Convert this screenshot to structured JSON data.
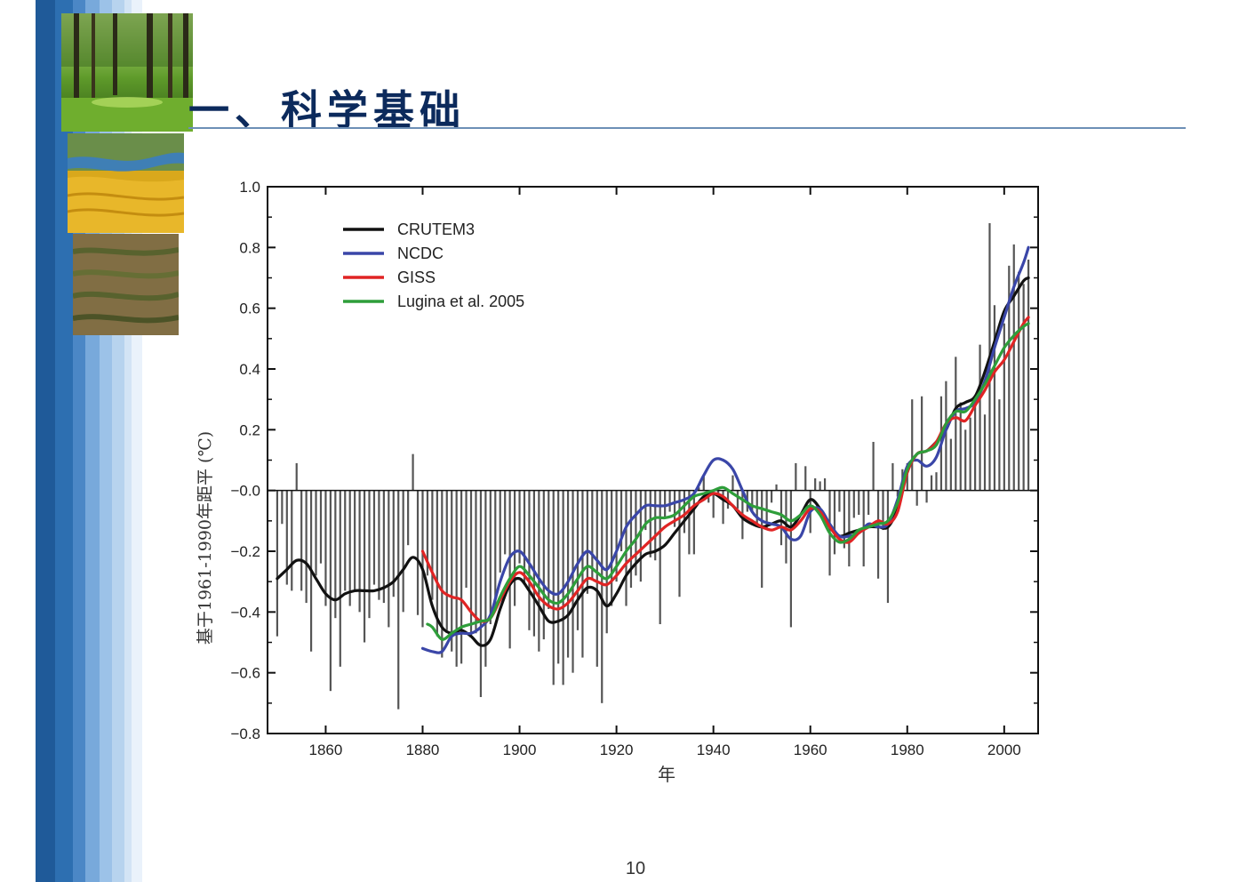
{
  "slide": {
    "title": "一、科学基础",
    "page_number": "10"
  },
  "colors": {
    "title": "#0c2a5c",
    "sidebar_dark": "#1f5a99",
    "sidebar_light": "#b7d3ee",
    "bars": "#555555"
  },
  "photos": [
    "forest-photo",
    "river-desert-photo",
    "terraced-field-photo"
  ],
  "chart_data": {
    "type": "line",
    "title": "",
    "xlabel": "年",
    "ylabel": "基于1961-1990年距平 (℃)",
    "xlim": [
      1848,
      2007
    ],
    "ylim": [
      -0.8,
      1.0
    ],
    "xticks": [
      1860,
      1880,
      1900,
      1920,
      1940,
      1960,
      1980,
      2000
    ],
    "yticks": [
      "1.0",
      "0.8",
      "0.6",
      "0.4",
      "0.2",
      "−0.0",
      "−0.2",
      "−0.4",
      "−0.6",
      "−0.8"
    ],
    "grid": false,
    "legend_position": "top-left",
    "bars": {
      "name": "annual anomaly",
      "color": "#555555",
      "x": [
        1850,
        1851,
        1852,
        1853,
        1854,
        1855,
        1856,
        1857,
        1858,
        1859,
        1860,
        1861,
        1862,
        1863,
        1864,
        1865,
        1866,
        1867,
        1868,
        1869,
        1870,
        1871,
        1872,
        1873,
        1874,
        1875,
        1876,
        1877,
        1878,
        1879,
        1880,
        1881,
        1882,
        1883,
        1884,
        1885,
        1886,
        1887,
        1888,
        1889,
        1890,
        1891,
        1892,
        1893,
        1894,
        1895,
        1896,
        1897,
        1898,
        1899,
        1900,
        1901,
        1902,
        1903,
        1904,
        1905,
        1906,
        1907,
        1908,
        1909,
        1910,
        1911,
        1912,
        1913,
        1914,
        1915,
        1916,
        1917,
        1918,
        1919,
        1920,
        1921,
        1922,
        1923,
        1924,
        1925,
        1926,
        1927,
        1928,
        1929,
        1930,
        1931,
        1932,
        1933,
        1934,
        1935,
        1936,
        1937,
        1938,
        1939,
        1940,
        1941,
        1942,
        1943,
        1944,
        1945,
        1946,
        1947,
        1948,
        1949,
        1950,
        1951,
        1952,
        1953,
        1954,
        1955,
        1956,
        1957,
        1958,
        1959,
        1960,
        1961,
        1962,
        1963,
        1964,
        1965,
        1966,
        1967,
        1968,
        1969,
        1970,
        1971,
        1972,
        1973,
        1974,
        1975,
        1976,
        1977,
        1978,
        1979,
        1980,
        1981,
        1982,
        1983,
        1984,
        1985,
        1986,
        1987,
        1988,
        1989,
        1990,
        1991,
        1992,
        1993,
        1994,
        1995,
        1996,
        1997,
        1998,
        1999,
        2000,
        2001,
        2002,
        2003,
        2004,
        2005
      ],
      "values": [
        -0.48,
        -0.11,
        -0.31,
        -0.33,
        0.09,
        -0.33,
        -0.37,
        -0.53,
        -0.28,
        -0.24,
        -0.38,
        -0.66,
        -0.42,
        -0.58,
        -0.33,
        -0.38,
        -0.33,
        -0.4,
        -0.5,
        -0.42,
        -0.31,
        -0.36,
        -0.37,
        -0.45,
        -0.35,
        -0.72,
        -0.4,
        -0.18,
        0.12,
        -0.41,
        -0.45,
        -0.28,
        -0.36,
        -0.48,
        -0.55,
        -0.46,
        -0.53,
        -0.58,
        -0.57,
        -0.32,
        -0.48,
        -0.47,
        -0.68,
        -0.58,
        -0.44,
        -0.38,
        -0.27,
        -0.21,
        -0.52,
        -0.38,
        -0.24,
        -0.31,
        -0.46,
        -0.48,
        -0.53,
        -0.49,
        -0.39,
        -0.64,
        -0.57,
        -0.64,
        -0.55,
        -0.6,
        -0.46,
        -0.55,
        -0.34,
        -0.29,
        -0.58,
        -0.7,
        -0.47,
        -0.38,
        -0.3,
        -0.2,
        -0.38,
        -0.32,
        -0.28,
        -0.3,
        -0.13,
        -0.22,
        -0.23,
        -0.44,
        -0.09,
        -0.07,
        -0.12,
        -0.35,
        -0.14,
        -0.21,
        -0.21,
        0.01,
        0.05,
        -0.04,
        -0.09,
        -0.02,
        -0.11,
        -0.06,
        0.05,
        -0.06,
        -0.16,
        -0.07,
        -0.07,
        -0.12,
        -0.32,
        -0.13,
        -0.04,
        0.02,
        -0.18,
        -0.24,
        -0.45,
        0.09,
        0.0,
        0.08,
        -0.14,
        0.04,
        0.03,
        0.04,
        -0.28,
        -0.21,
        -0.07,
        -0.19,
        -0.25,
        -0.09,
        -0.08,
        -0.25,
        -0.08,
        0.16,
        -0.29,
        -0.13,
        -0.37,
        0.09,
        -0.02,
        0.07,
        0.09,
        0.3,
        -0.05,
        0.31,
        -0.04,
        0.05,
        0.06,
        0.31,
        0.36,
        0.17,
        0.44,
        0.29,
        0.2,
        0.24,
        0.29,
        0.48,
        0.25,
        0.88,
        0.61,
        0.3,
        0.55,
        0.74,
        0.81,
        0.72,
        0.68,
        0.76
      ]
    },
    "series": [
      {
        "name": "CRUTEM3",
        "color": "#111111",
        "x": [
          1850,
          1852,
          1854,
          1856,
          1858,
          1860,
          1862,
          1864,
          1866,
          1868,
          1870,
          1872,
          1874,
          1876,
          1878,
          1880,
          1882,
          1884,
          1886,
          1888,
          1890,
          1892,
          1894,
          1896,
          1898,
          1900,
          1902,
          1904,
          1906,
          1908,
          1910,
          1912,
          1914,
          1916,
          1918,
          1920,
          1922,
          1924,
          1926,
          1928,
          1930,
          1932,
          1934,
          1936,
          1938,
          1940,
          1942,
          1944,
          1946,
          1948,
          1950,
          1952,
          1954,
          1956,
          1958,
          1960,
          1962,
          1964,
          1966,
          1968,
          1970,
          1972,
          1974,
          1976,
          1978,
          1980,
          1982,
          1984,
          1986,
          1988,
          1990,
          1992,
          1994,
          1996,
          1998,
          2000,
          2002,
          2004,
          2005
        ],
        "y": [
          -0.29,
          -0.26,
          -0.23,
          -0.24,
          -0.29,
          -0.34,
          -0.36,
          -0.34,
          -0.33,
          -0.33,
          -0.33,
          -0.32,
          -0.3,
          -0.26,
          -0.22,
          -0.26,
          -0.38,
          -0.45,
          -0.47,
          -0.46,
          -0.48,
          -0.51,
          -0.49,
          -0.39,
          -0.31,
          -0.29,
          -0.33,
          -0.38,
          -0.43,
          -0.43,
          -0.41,
          -0.36,
          -0.32,
          -0.33,
          -0.38,
          -0.34,
          -0.28,
          -0.24,
          -0.21,
          -0.2,
          -0.18,
          -0.14,
          -0.1,
          -0.06,
          -0.02,
          -0.01,
          -0.03,
          -0.05,
          -0.09,
          -0.11,
          -0.12,
          -0.11,
          -0.1,
          -0.12,
          -0.08,
          -0.03,
          -0.06,
          -0.12,
          -0.15,
          -0.14,
          -0.13,
          -0.12,
          -0.12,
          -0.12,
          -0.06,
          0.06,
          0.12,
          0.13,
          0.16,
          0.2,
          0.27,
          0.29,
          0.31,
          0.39,
          0.49,
          0.59,
          0.64,
          0.69,
          0.7
        ]
      },
      {
        "name": "NCDC",
        "color": "#3a46a8",
        "x": [
          1880,
          1882,
          1884,
          1886,
          1888,
          1890,
          1892,
          1894,
          1896,
          1898,
          1900,
          1902,
          1904,
          1906,
          1908,
          1910,
          1912,
          1914,
          1916,
          1918,
          1920,
          1922,
          1924,
          1926,
          1928,
          1930,
          1932,
          1934,
          1936,
          1938,
          1940,
          1942,
          1944,
          1946,
          1948,
          1950,
          1952,
          1954,
          1956,
          1958,
          1960,
          1962,
          1964,
          1966,
          1968,
          1970,
          1972,
          1974,
          1976,
          1978,
          1980,
          1982,
          1984,
          1986,
          1988,
          1990,
          1992,
          1994,
          1996,
          1998,
          2000,
          2002,
          2004,
          2005
        ],
        "y": [
          -0.52,
          -0.53,
          -0.53,
          -0.48,
          -0.47,
          -0.47,
          -0.45,
          -0.41,
          -0.3,
          -0.22,
          -0.2,
          -0.24,
          -0.29,
          -0.33,
          -0.34,
          -0.3,
          -0.24,
          -0.2,
          -0.23,
          -0.26,
          -0.2,
          -0.12,
          -0.08,
          -0.05,
          -0.05,
          -0.05,
          -0.04,
          -0.03,
          -0.01,
          0.05,
          0.1,
          0.1,
          0.07,
          0.0,
          -0.07,
          -0.1,
          -0.11,
          -0.12,
          -0.16,
          -0.15,
          -0.07,
          -0.06,
          -0.11,
          -0.15,
          -0.15,
          -0.14,
          -0.11,
          -0.12,
          -0.11,
          -0.03,
          0.08,
          0.1,
          0.08,
          0.11,
          0.2,
          0.26,
          0.27,
          0.29,
          0.36,
          0.47,
          0.57,
          0.67,
          0.75,
          0.8
        ]
      },
      {
        "name": "GISS",
        "color": "#e02424",
        "x": [
          1880,
          1882,
          1884,
          1886,
          1888,
          1890,
          1892,
          1894,
          1896,
          1898,
          1900,
          1902,
          1904,
          1906,
          1908,
          1910,
          1912,
          1914,
          1916,
          1918,
          1920,
          1922,
          1924,
          1926,
          1928,
          1930,
          1932,
          1934,
          1936,
          1938,
          1940,
          1942,
          1944,
          1946,
          1948,
          1950,
          1952,
          1954,
          1956,
          1958,
          1960,
          1962,
          1964,
          1966,
          1968,
          1970,
          1972,
          1974,
          1976,
          1978,
          1980,
          1982,
          1984,
          1986,
          1988,
          1990,
          1992,
          1994,
          1996,
          1998,
          2000,
          2002,
          2004,
          2005
        ],
        "y": [
          -0.2,
          -0.27,
          -0.33,
          -0.35,
          -0.36,
          -0.4,
          -0.43,
          -0.42,
          -0.36,
          -0.3,
          -0.27,
          -0.3,
          -0.35,
          -0.38,
          -0.39,
          -0.37,
          -0.33,
          -0.29,
          -0.3,
          -0.31,
          -0.28,
          -0.24,
          -0.21,
          -0.18,
          -0.15,
          -0.12,
          -0.1,
          -0.08,
          -0.05,
          -0.03,
          -0.01,
          -0.02,
          -0.05,
          -0.08,
          -0.1,
          -0.12,
          -0.13,
          -0.12,
          -0.13,
          -0.1,
          -0.06,
          -0.07,
          -0.12,
          -0.16,
          -0.17,
          -0.14,
          -0.12,
          -0.1,
          -0.11,
          -0.07,
          0.06,
          0.12,
          0.13,
          0.16,
          0.22,
          0.24,
          0.23,
          0.28,
          0.33,
          0.39,
          0.43,
          0.49,
          0.55,
          0.57
        ]
      },
      {
        "name": "Lugina et al. 2005",
        "color": "#2e9e3a",
        "x": [
          1881,
          1882,
          1884,
          1886,
          1888,
          1890,
          1892,
          1894,
          1896,
          1898,
          1900,
          1902,
          1904,
          1906,
          1908,
          1910,
          1912,
          1914,
          1916,
          1918,
          1920,
          1922,
          1924,
          1926,
          1928,
          1930,
          1932,
          1934,
          1936,
          1938,
          1940,
          1942,
          1944,
          1946,
          1948,
          1950,
          1952,
          1954,
          1956,
          1958,
          1960,
          1962,
          1964,
          1966,
          1968,
          1970,
          1972,
          1974,
          1976,
          1978,
          1980,
          1982,
          1984,
          1986,
          1988,
          1990,
          1992,
          1994,
          1996,
          1998,
          2000,
          2002,
          2004,
          2005
        ],
        "y": [
          -0.44,
          -0.45,
          -0.49,
          -0.47,
          -0.45,
          -0.44,
          -0.43,
          -0.42,
          -0.35,
          -0.29,
          -0.25,
          -0.28,
          -0.32,
          -0.36,
          -0.37,
          -0.34,
          -0.29,
          -0.25,
          -0.27,
          -0.29,
          -0.25,
          -0.2,
          -0.16,
          -0.11,
          -0.09,
          -0.09,
          -0.08,
          -0.05,
          -0.02,
          -0.01,
          0.0,
          0.01,
          -0.01,
          -0.03,
          -0.05,
          -0.06,
          -0.07,
          -0.08,
          -0.1,
          -0.08,
          -0.05,
          -0.08,
          -0.14,
          -0.17,
          -0.16,
          -0.13,
          -0.12,
          -0.11,
          -0.1,
          -0.04,
          0.07,
          0.12,
          0.13,
          0.15,
          0.22,
          0.26,
          0.26,
          0.3,
          0.35,
          0.41,
          0.47,
          0.51,
          0.54,
          0.55
        ]
      }
    ]
  }
}
